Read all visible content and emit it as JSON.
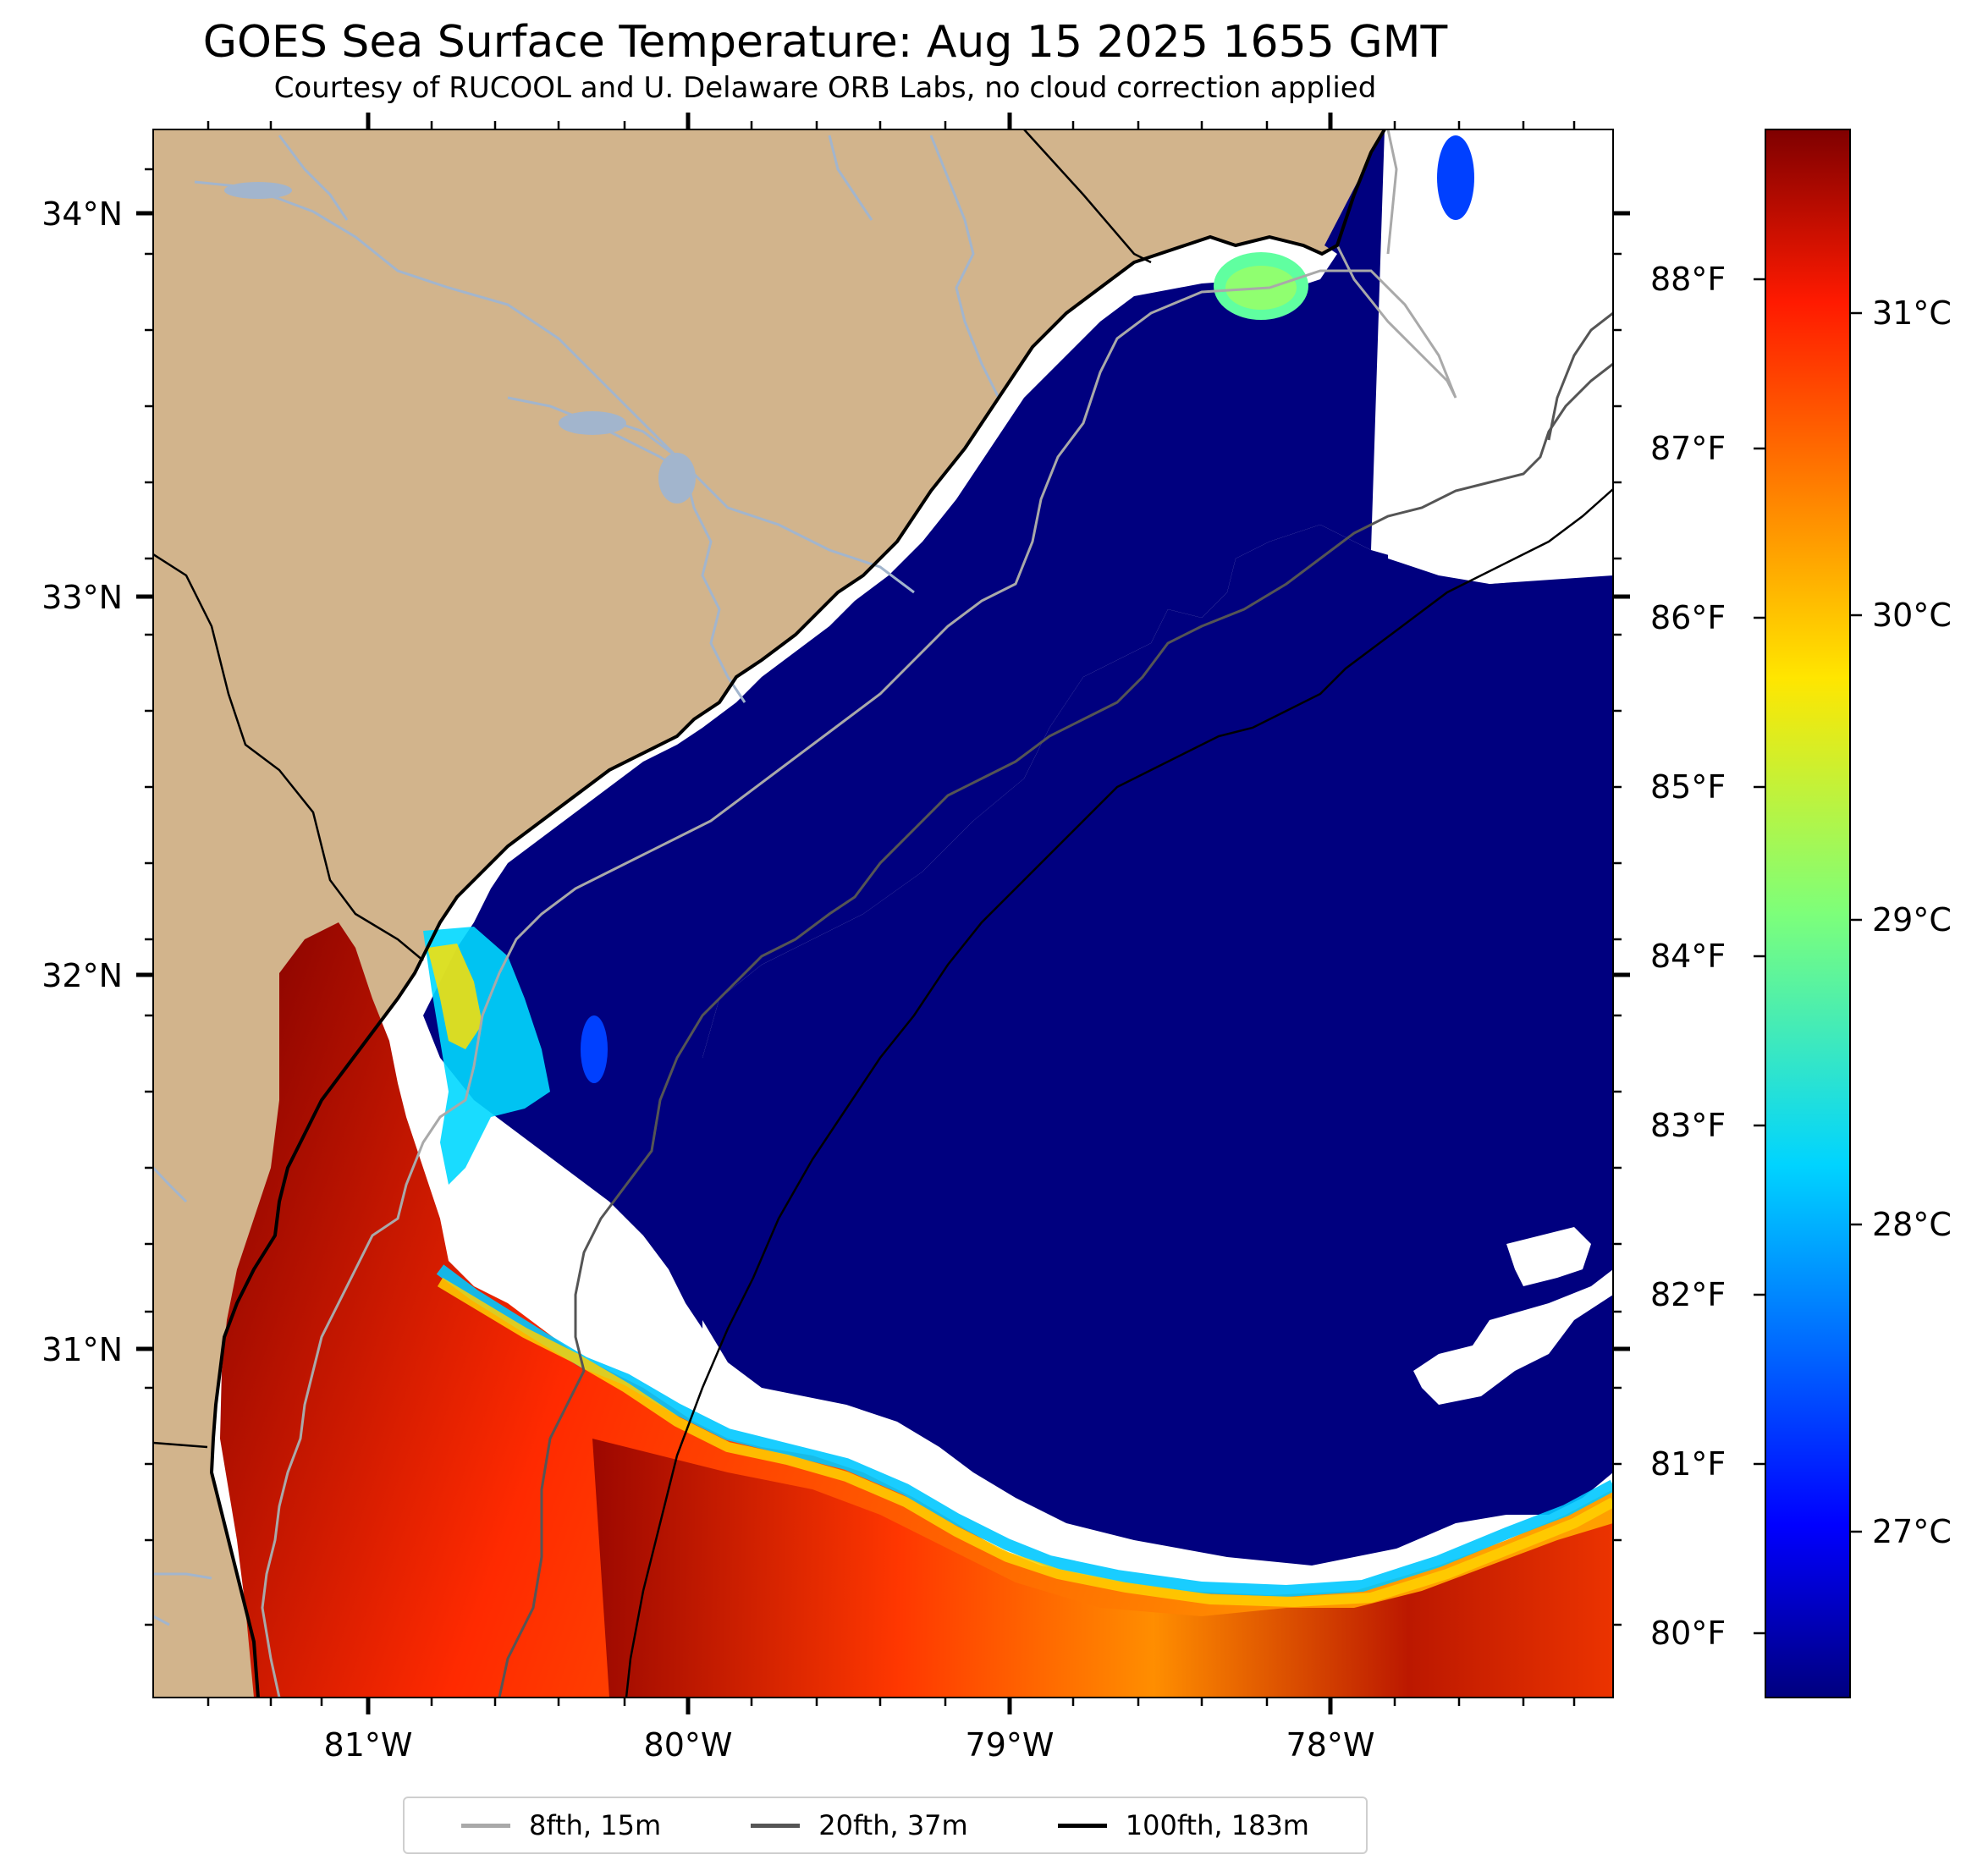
{
  "title": "GOES Sea Surface Temperature: Aug 15 2025 1655 GMT",
  "subtitle": "Courtesy of RUCOOL and U. Delaware ORB Labs, no cloud correction applied",
  "map": {
    "lon_range": [
      -81.67,
      -77.12
    ],
    "lat_range": [
      30.09,
      34.2
    ],
    "lat_labels": [
      "34°N",
      "33°N",
      "32°N",
      "31°N"
    ],
    "lon_labels": [
      "81°W",
      "80°W",
      "79°W",
      "78°W"
    ],
    "land_color": "#d2b48c",
    "cloud_color": "#ffffff",
    "river_color": "#a2b5cd"
  },
  "colorbar": {
    "colormap": "jet",
    "celsius_labels": [
      "31°C",
      "30°C",
      "29°C",
      "28°C",
      "27°C"
    ],
    "fahrenheit_labels": [
      "88°F",
      "87°F",
      "86°F",
      "85°F",
      "84°F",
      "83°F",
      "82°F",
      "81°F",
      "80°F"
    ]
  },
  "legend": {
    "items": [
      {
        "label": "8fth, 15m",
        "color": "#a9a9a9"
      },
      {
        "label": "20fth, 37m",
        "color": "#555555"
      },
      {
        "label": "100fth, 183m",
        "color": "#000000"
      }
    ]
  }
}
